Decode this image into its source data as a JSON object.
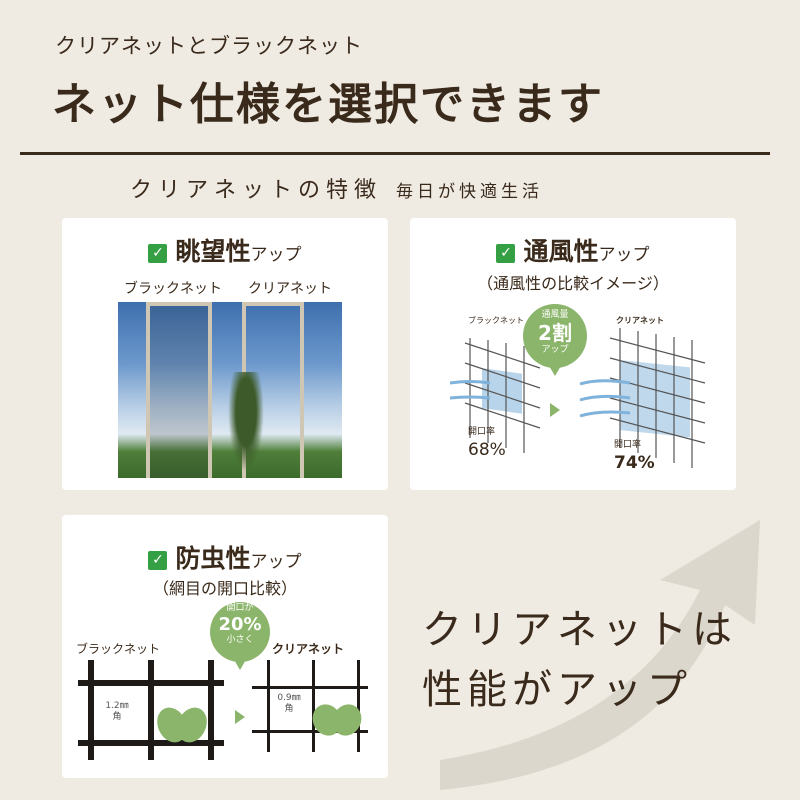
{
  "header": {
    "subtitle": "クリアネットとブラックネット",
    "title": "ネット仕様を選択できます"
  },
  "section": {
    "heading": "クリアネットの特徴",
    "tagline": "毎日が快適生活"
  },
  "cards": [
    {
      "title": "眺望性",
      "suffix": "アップ",
      "labels": [
        "ブラックネット",
        "クリアネット"
      ]
    },
    {
      "title": "通風性",
      "suffix": "アップ",
      "caption": "（通風性の比較イメージ）",
      "left_label": "ブラックネット",
      "right_label": "クリアネット",
      "bubble": {
        "top": "通風量",
        "main": "2割",
        "bottom": "アップ"
      },
      "left_rate_label": "開口率",
      "left_rate": "68%",
      "right_rate_label": "開口率",
      "right_rate": "74%"
    },
    {
      "title": "防虫性",
      "suffix": "アップ",
      "caption": "（網目の開口比較）",
      "left_label": "ブラックネット",
      "right_label": "クリアネット",
      "bubble": {
        "top": "開口が",
        "main": "20%",
        "bottom": "小さく"
      },
      "left_size": "1.2㎜",
      "left_unit": "角",
      "right_size": "0.9㎜",
      "right_unit": "角"
    }
  ],
  "conclusion": {
    "line1": "クリアネットは",
    "line2": "性能がアップ"
  },
  "colors": {
    "text": "#3a2a1b",
    "accent_green": "#8bb56a",
    "check": "#34a043",
    "background": "#efebe3"
  }
}
